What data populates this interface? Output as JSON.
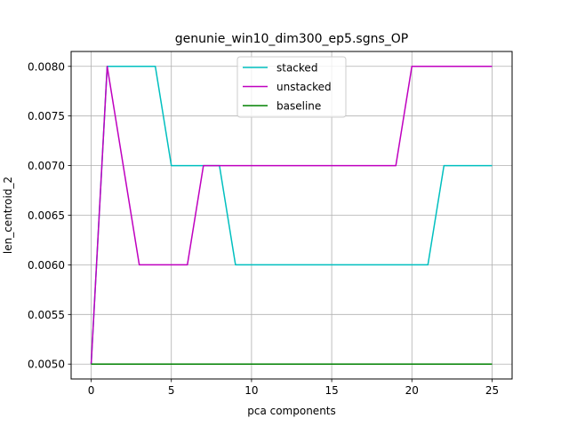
{
  "chart_data": {
    "type": "line",
    "title": "genunie_win10_dim300_ep5.sgns_OP",
    "xlabel": "pca components",
    "ylabel": "len_centroid_2",
    "xlim": [
      -1.25,
      26.25
    ],
    "ylim": [
      0.00485,
      0.00815
    ],
    "xticks": [
      0,
      5,
      10,
      15,
      20,
      25
    ],
    "xtick_labels": [
      "0",
      "5",
      "10",
      "15",
      "20",
      "25"
    ],
    "yticks": [
      0.005,
      0.0055,
      0.006,
      0.0065,
      0.007,
      0.0075,
      0.008
    ],
    "ytick_labels": [
      "0.0050",
      "0.0055",
      "0.0060",
      "0.0065",
      "0.0070",
      "0.0075",
      "0.0080"
    ],
    "grid": true,
    "legend_position": "top-center",
    "x": [
      0,
      1,
      2,
      3,
      4,
      5,
      6,
      7,
      8,
      9,
      10,
      11,
      12,
      13,
      14,
      15,
      16,
      17,
      18,
      19,
      20,
      21,
      22,
      23,
      24,
      25
    ],
    "series": [
      {
        "name": "stacked",
        "color": "#00bfbf",
        "values": [
          0.005,
          0.008,
          0.008,
          0.008,
          0.008,
          0.007,
          0.007,
          0.007,
          0.007,
          0.006,
          0.006,
          0.006,
          0.006,
          0.006,
          0.006,
          0.006,
          0.006,
          0.006,
          0.006,
          0.006,
          0.006,
          0.006,
          0.007,
          0.007,
          0.007,
          0.007
        ]
      },
      {
        "name": "unstacked",
        "color": "#bf00bf",
        "values": [
          0.005,
          0.008,
          0.007,
          0.006,
          0.006,
          0.006,
          0.006,
          0.007,
          0.007,
          0.007,
          0.007,
          0.007,
          0.007,
          0.007,
          0.007,
          0.007,
          0.007,
          0.007,
          0.007,
          0.007,
          0.008,
          0.008,
          0.008,
          0.008,
          0.008,
          0.008
        ]
      },
      {
        "name": "baseline",
        "color": "#008000",
        "values": [
          0.005,
          0.005,
          0.005,
          0.005,
          0.005,
          0.005,
          0.005,
          0.005,
          0.005,
          0.005,
          0.005,
          0.005,
          0.005,
          0.005,
          0.005,
          0.005,
          0.005,
          0.005,
          0.005,
          0.005,
          0.005,
          0.005,
          0.005,
          0.005,
          0.005,
          0.005
        ]
      }
    ]
  }
}
